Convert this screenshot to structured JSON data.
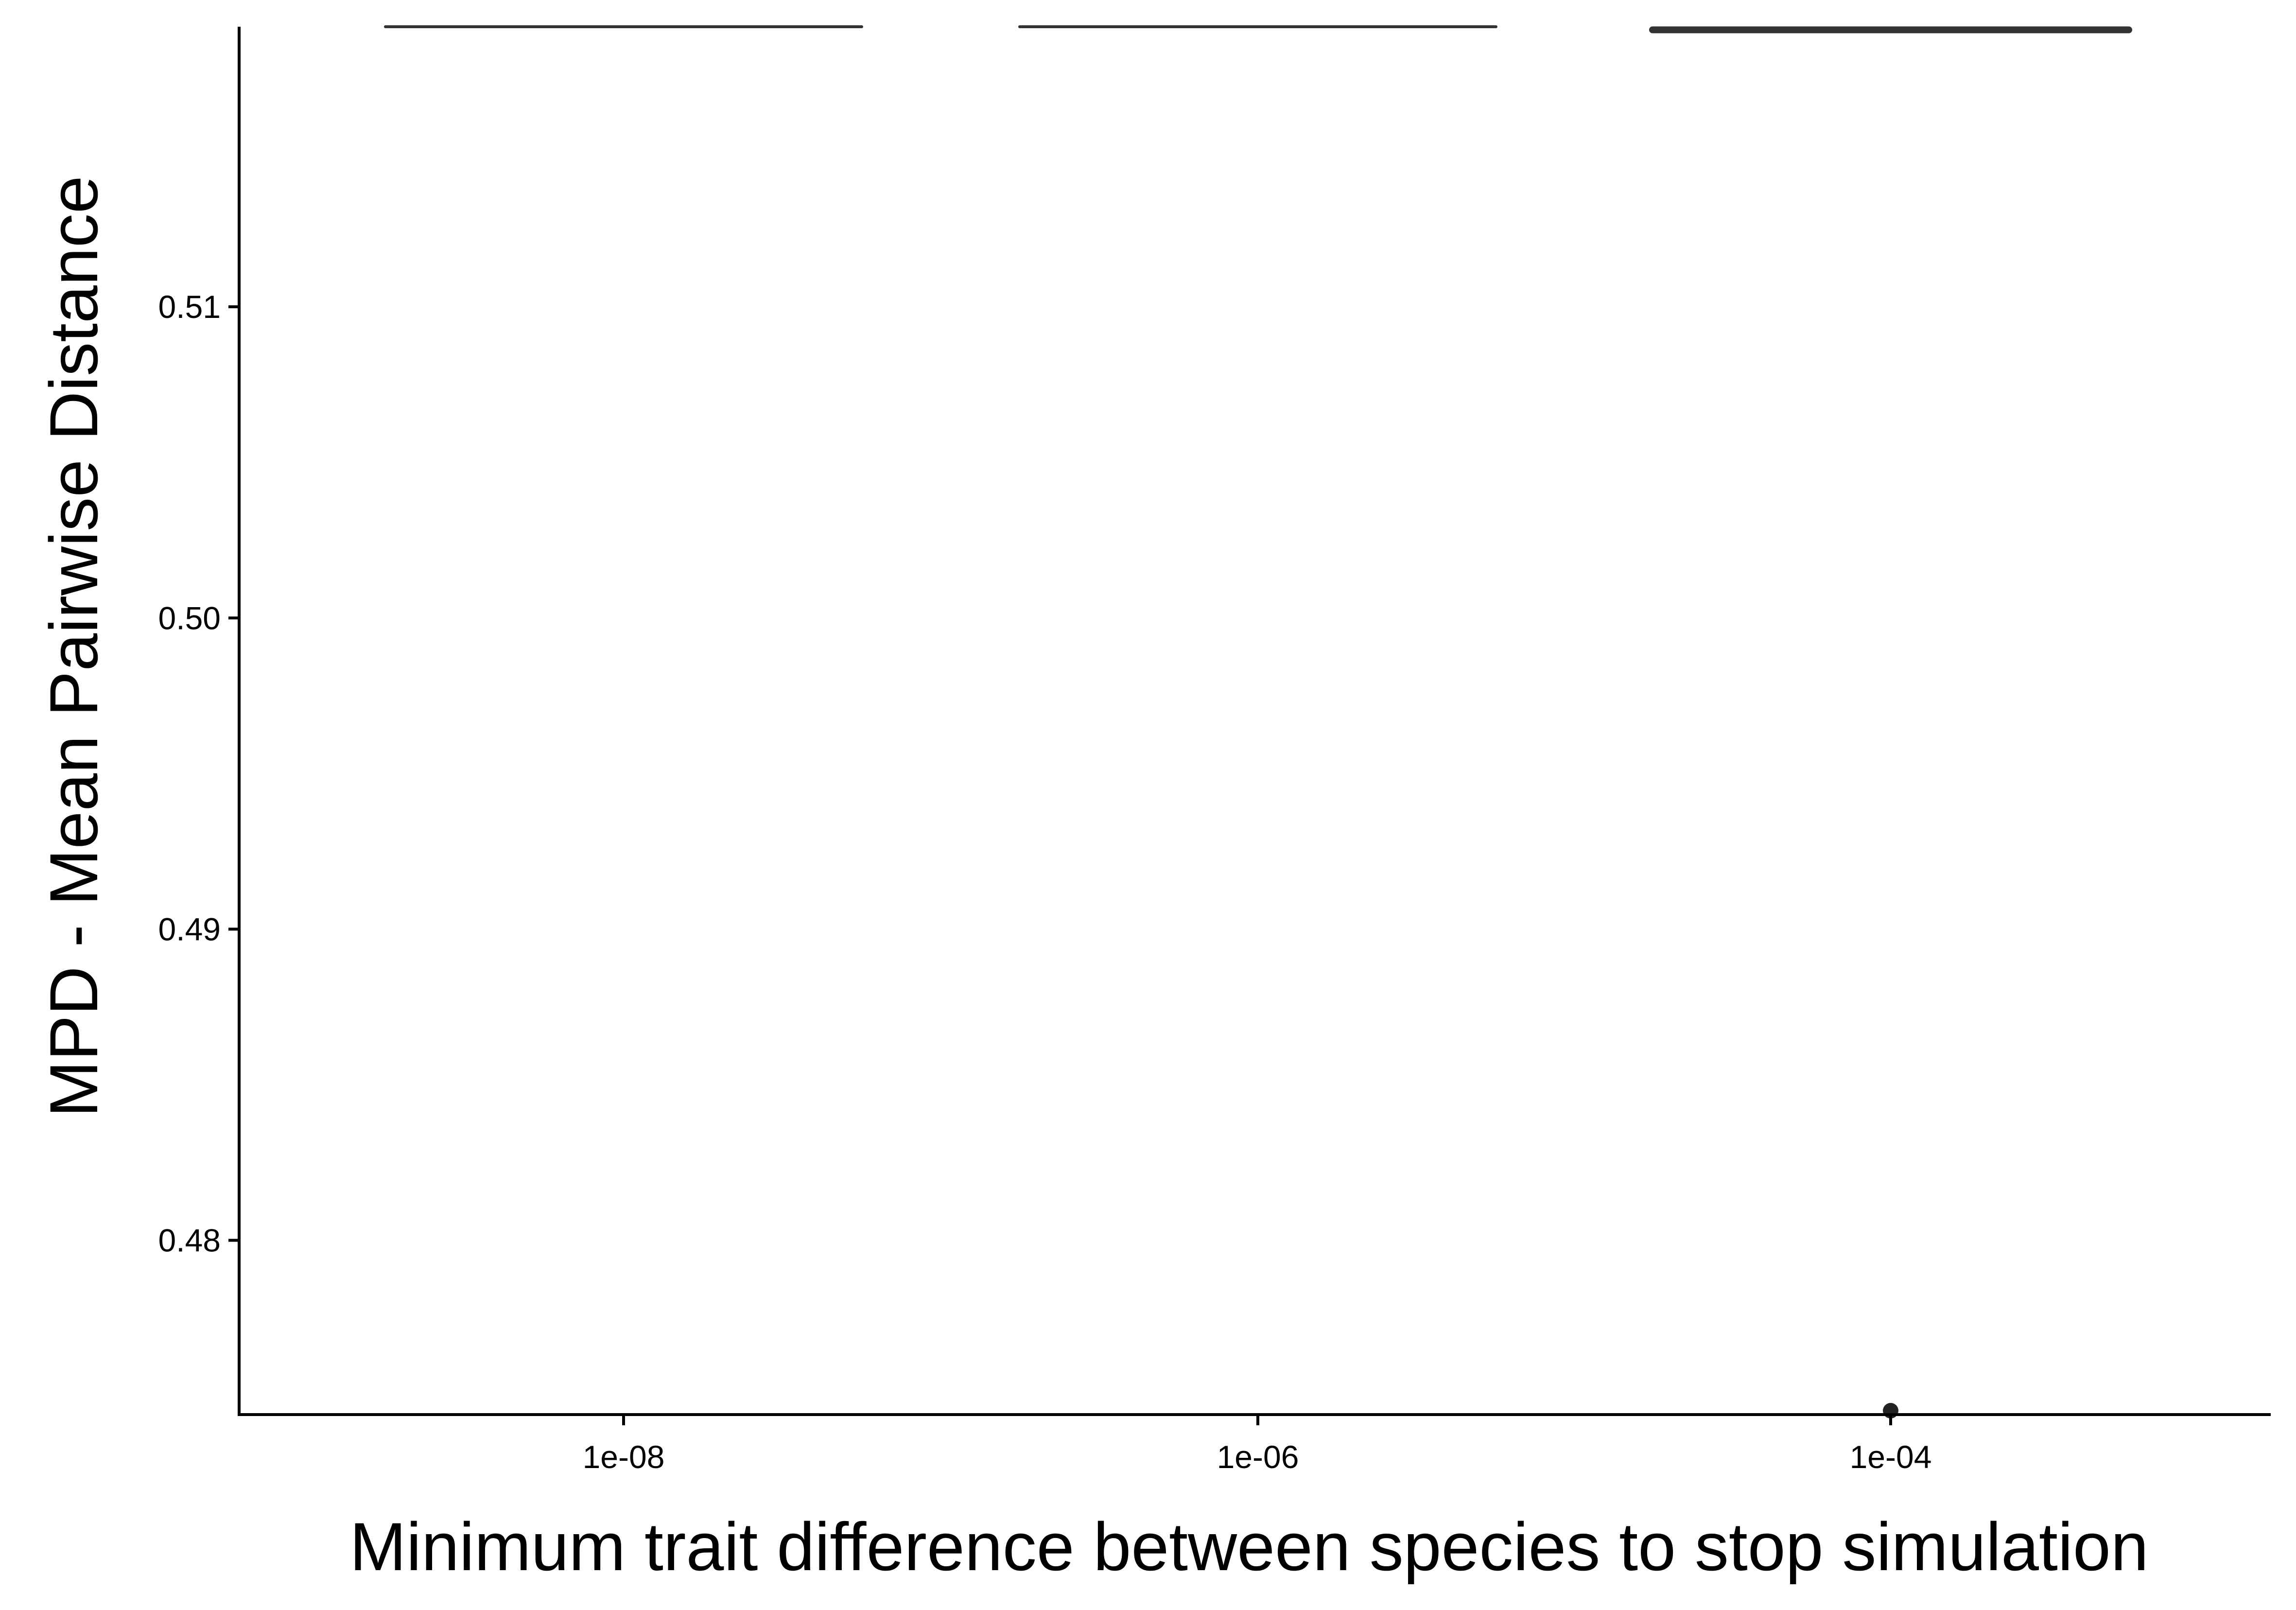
{
  "chart_data": {
    "type": "box",
    "title": "",
    "xlabel": "Minimum trait difference between species to stop simulation",
    "ylabel": "MPD - Mean Pairwise Distance",
    "x_categories": [
      "1e-08",
      "1e-06",
      "1e-04"
    ],
    "ylim": [
      0.4744,
      0.519
    ],
    "y_ticks": [
      0.48,
      0.49,
      0.5,
      0.51
    ],
    "y_tick_labels": [
      "0.48",
      "0.49",
      "0.50",
      "0.51"
    ],
    "series": [
      {
        "category": "1e-08",
        "min": 0.519,
        "q1": 0.519,
        "median": 0.519,
        "q3": 0.519,
        "max": 0.519,
        "outliers": []
      },
      {
        "category": "1e-06",
        "min": 0.519,
        "q1": 0.519,
        "median": 0.519,
        "q3": 0.519,
        "max": 0.519,
        "outliers": []
      },
      {
        "category": "1e-04",
        "min": 0.5189,
        "q1": 0.5189,
        "median": 0.5189,
        "q3": 0.5189,
        "max": 0.5189,
        "outliers": [
          0.4743
        ]
      }
    ],
    "grid": false,
    "legend": "none",
    "colors": {
      "box_line": "#333333",
      "outlier": "#222222",
      "axis": "#000000",
      "background": "#ffffff"
    }
  }
}
